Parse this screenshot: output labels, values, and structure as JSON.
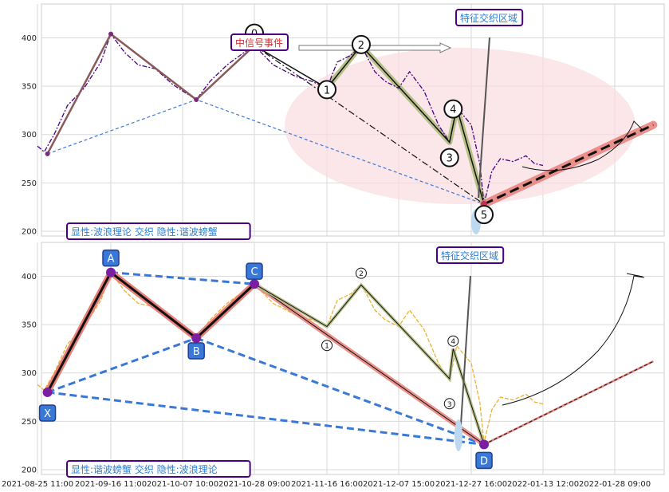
{
  "chart_data": [
    {
      "type": "line",
      "panel": "top",
      "ylim": [
        195,
        435
      ],
      "yticks": [
        200,
        250,
        300,
        350,
        400
      ],
      "grid": true,
      "annotations": {
        "legend_box": "显性:波浪理论 交织 隐性:谐波螃蟹",
        "feature_box": "特征交织区域",
        "event_box": "中信号事件"
      },
      "wave_labels": [
        {
          "label": "0",
          "x": "2021-10-28 09:00",
          "y": 404
        },
        {
          "label": "1",
          "x": "2021-11-16 16:00",
          "y": 339
        },
        {
          "label": "2",
          "x": "2021-11-26 16:00",
          "y": 398
        },
        {
          "label": "3",
          "x": "2021-12-21 16:00",
          "y": 286
        },
        {
          "label": "4",
          "x": "2021-12-22 16:00",
          "y": 324
        },
        {
          "label": "5",
          "x": "2021-12-30 16:00",
          "y": 218
        }
      ],
      "price_series": {
        "name": "price",
        "points": [
          [
            "2021-08-25 11:00",
            288
          ],
          [
            "2021-08-27 11:00",
            282
          ],
          [
            "2021-08-30 11:00",
            300
          ],
          [
            "2021-09-03 11:00",
            330
          ],
          [
            "2021-09-08 11:00",
            348
          ],
          [
            "2021-09-13 11:00",
            375
          ],
          [
            "2021-09-16 11:00",
            404
          ],
          [
            "2021-09-20 11:00",
            385
          ],
          [
            "2021-09-24 11:00",
            372
          ],
          [
            "2021-09-29 11:00",
            368
          ],
          [
            "2021-10-04 11:00",
            352
          ],
          [
            "2021-10-07 10:00",
            345
          ],
          [
            "2021-10-11 10:00",
            336
          ],
          [
            "2021-10-15 10:00",
            355
          ],
          [
            "2021-10-20 10:00",
            372
          ],
          [
            "2021-10-25 10:00",
            385
          ],
          [
            "2021-10-28 09:00",
            392
          ],
          [
            "2021-11-02 09:00",
            372
          ],
          [
            "2021-11-08 09:00",
            360
          ],
          [
            "2021-11-12 16:00",
            355
          ],
          [
            "2021-11-16 16:00",
            348
          ],
          [
            "2021-11-19 16:00",
            375
          ],
          [
            "2021-11-23 16:00",
            382
          ],
          [
            "2021-11-26 16:00",
            392
          ],
          [
            "2021-11-30 16:00",
            365
          ],
          [
            "2021-12-03 16:00",
            355
          ],
          [
            "2021-12-07 15:00",
            348
          ],
          [
            "2021-12-10 15:00",
            365
          ],
          [
            "2021-12-14 15:00",
            345
          ],
          [
            "2021-12-18 15:00",
            310
          ],
          [
            "2021-12-21 16:00",
            292
          ],
          [
            "2021-12-23 16:00",
            328
          ],
          [
            "2021-12-27 16:00",
            310
          ],
          [
            "2021-12-29 16:00",
            270
          ],
          [
            "2021-12-30 16:00",
            228
          ],
          [
            "2022-01-01 12:00",
            262
          ],
          [
            "2022-01-03 12:00",
            275
          ],
          [
            "2022-01-06 12:00",
            272
          ],
          [
            "2022-01-09 12:00",
            278
          ],
          [
            "2022-01-11 12:00",
            270
          ],
          [
            "2022-01-13 12:00",
            268
          ]
        ]
      },
      "zigzag": [
        [
          "2021-08-28 11:00",
          280
        ],
        [
          "2021-09-16 11:00",
          404
        ],
        [
          "2021-10-11 10:00",
          336
        ],
        [
          "2021-10-28 09:00",
          392
        ],
        [
          "2021-11-16 16:00",
          348
        ],
        [
          "2021-11-26 16:00",
          392
        ],
        [
          "2021-12-21 16:00",
          292
        ],
        [
          "2021-12-23 16:00",
          328
        ],
        [
          "2021-12-30 16:00",
          228
        ]
      ],
      "projection": [
        [
          "2021-12-30 16:00",
          228
        ],
        [
          "2022-02-05 09:00",
          310
        ]
      ]
    },
    {
      "type": "line",
      "panel": "bottom",
      "ylim": [
        195,
        435
      ],
      "yticks": [
        200,
        250,
        300,
        350,
        400
      ],
      "grid": true,
      "annotations": {
        "legend_box": "显性:谐波螃蟹 交织 隐性:波浪理论",
        "feature_box": "特征交织区域"
      },
      "xabc_points": [
        {
          "label": "X",
          "x": "2021-08-28 11:00",
          "y": 280
        },
        {
          "label": "A",
          "x": "2021-09-16 11:00",
          "y": 404
        },
        {
          "label": "B",
          "x": "2021-10-11 10:00",
          "y": 336
        },
        {
          "label": "C",
          "x": "2021-10-28 09:00",
          "y": 392
        },
        {
          "label": "D",
          "x": "2021-12-30 16:00",
          "y": 226
        }
      ],
      "wave_labels": [
        {
          "label": "1",
          "x": "2021-11-16 16:00",
          "y": 340
        },
        {
          "label": "2",
          "x": "2021-11-26 16:00",
          "y": 399
        },
        {
          "label": "3",
          "x": "2021-12-21 16:00",
          "y": 283
        },
        {
          "label": "4",
          "x": "2021-12-22 16:00",
          "y": 328
        }
      ],
      "projection": [
        [
          "2021-12-30 16:00",
          226
        ],
        [
          "2022-02-05 09:00",
          312
        ]
      ]
    }
  ],
  "x_axis": {
    "tick_labels": [
      "2021-08-25 11:00",
      "2021-09-16 11:00",
      "2021-10-07 10:00",
      "2021-10-28 09:00",
      "2021-11-16 16:00",
      "2021-12-07 15:00",
      "2021-12-27 16:00",
      "2022-01-13 12:00",
      "2022-01-28 09:00"
    ]
  },
  "colors": {
    "price_top": "#4b0082",
    "price_bottom": "#f0b030",
    "zigzag_top": "#8a5a5a",
    "wave_highlight": "#b8c08a",
    "dashed_blue": "#3a78d8",
    "pattern_red": "#e8807a",
    "ellipse_fill": "#f9dbe0",
    "box_border": "#4b0082",
    "box_text": "#2a7fd4",
    "event_text": "#d03030",
    "label_blue": "#3a78d8"
  }
}
